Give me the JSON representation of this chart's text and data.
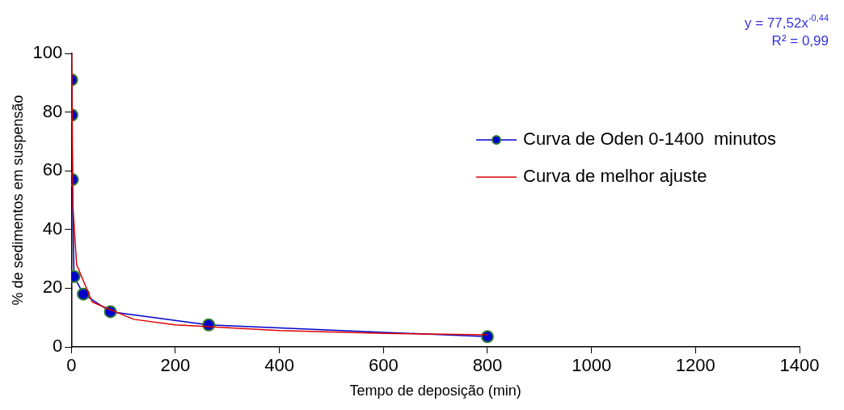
{
  "chart_data": {
    "type": "line",
    "xlabel": "Tempo de deposição (min)",
    "ylabel": "% de sedimentos em suspensão",
    "xlim": [
      0,
      1400
    ],
    "xticks": [
      0,
      200,
      400,
      600,
      800,
      1000,
      1200,
      1400
    ],
    "ylim": [
      0,
      100
    ],
    "yticks": [
      0,
      20,
      40,
      60,
      80,
      100
    ],
    "grid": false,
    "legend": "right",
    "series": [
      {
        "name": "Curva de Oden 0-1400  minutos",
        "color": "#0000cc",
        "marker": "circle",
        "x": [
          0.5,
          1,
          2,
          5,
          23,
          75,
          264,
          800
        ],
        "values": [
          91,
          79,
          57,
          24,
          18,
          12,
          7.5,
          3.5
        ]
      },
      {
        "name": "Curva de melhor ajuste",
        "color": "#dd0000",
        "marker": "none",
        "x": [
          0.56,
          3,
          10,
          40,
          120,
          200,
          400,
          600,
          800
        ],
        "values": [
          100,
          47.8,
          28.1,
          15.3,
          9.4,
          7.5,
          5.6,
          4.6,
          4.1
        ]
      }
    ],
    "annotations": [
      "y = 77,52x$^{-0,44}$",
      "R² = 0,99"
    ]
  }
}
